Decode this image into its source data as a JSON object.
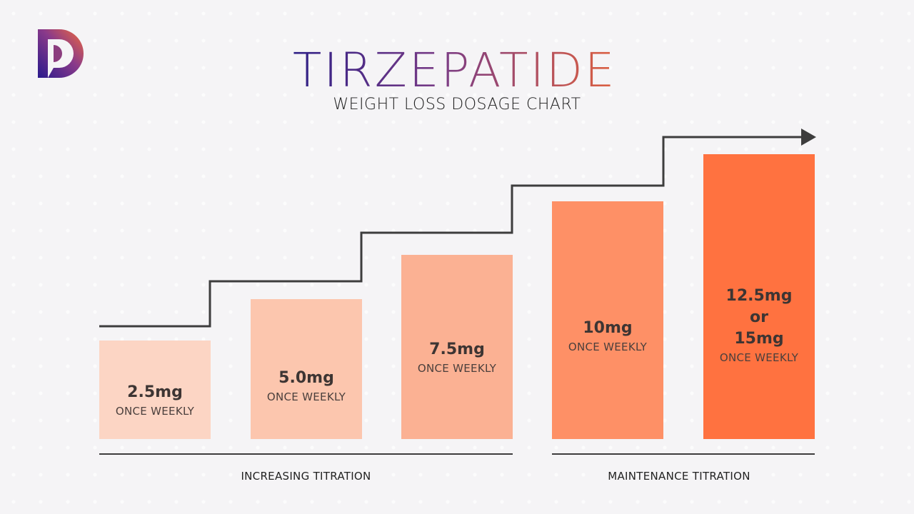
{
  "logo": {
    "text": "D",
    "colors": [
      "#2a1a8c",
      "#f06a3c"
    ]
  },
  "title": "TIRZEPATIDE",
  "subtitle": "WEIGHT LOSS DOSAGE CHART",
  "chart_data": {
    "type": "bar",
    "title": "TIRZEPATIDE",
    "subtitle": "WEIGHT LOSS DOSAGE CHART",
    "categories": [
      "2.5mg",
      "5.0mg",
      "7.5mg",
      "10mg",
      "12.5mg\nor\n15mg"
    ],
    "values_mg": [
      2.5,
      5.0,
      7.5,
      10,
      15
    ],
    "bars": [
      {
        "dose": "2.5mg",
        "frequency": "ONCE WEEKLY",
        "color": "#fcd5c4"
      },
      {
        "dose": "5.0mg",
        "frequency": "ONCE WEEKLY",
        "color": "#fcc6ae"
      },
      {
        "dose": "7.5mg",
        "frequency": "ONCE WEEKLY",
        "color": "#fbb193"
      },
      {
        "dose": "10mg",
        "frequency": "ONCE WEEKLY",
        "color": "#fe9066"
      },
      {
        "dose": "12.5mg\nor\n15mg",
        "frequency": "ONCE WEEKLY",
        "color": "#ff7240"
      }
    ],
    "phases": [
      {
        "label": "INCREASING TITRATION"
      },
      {
        "label": "MAINTENANCE TITRATION"
      }
    ],
    "line_color": "#3d3d3d"
  }
}
